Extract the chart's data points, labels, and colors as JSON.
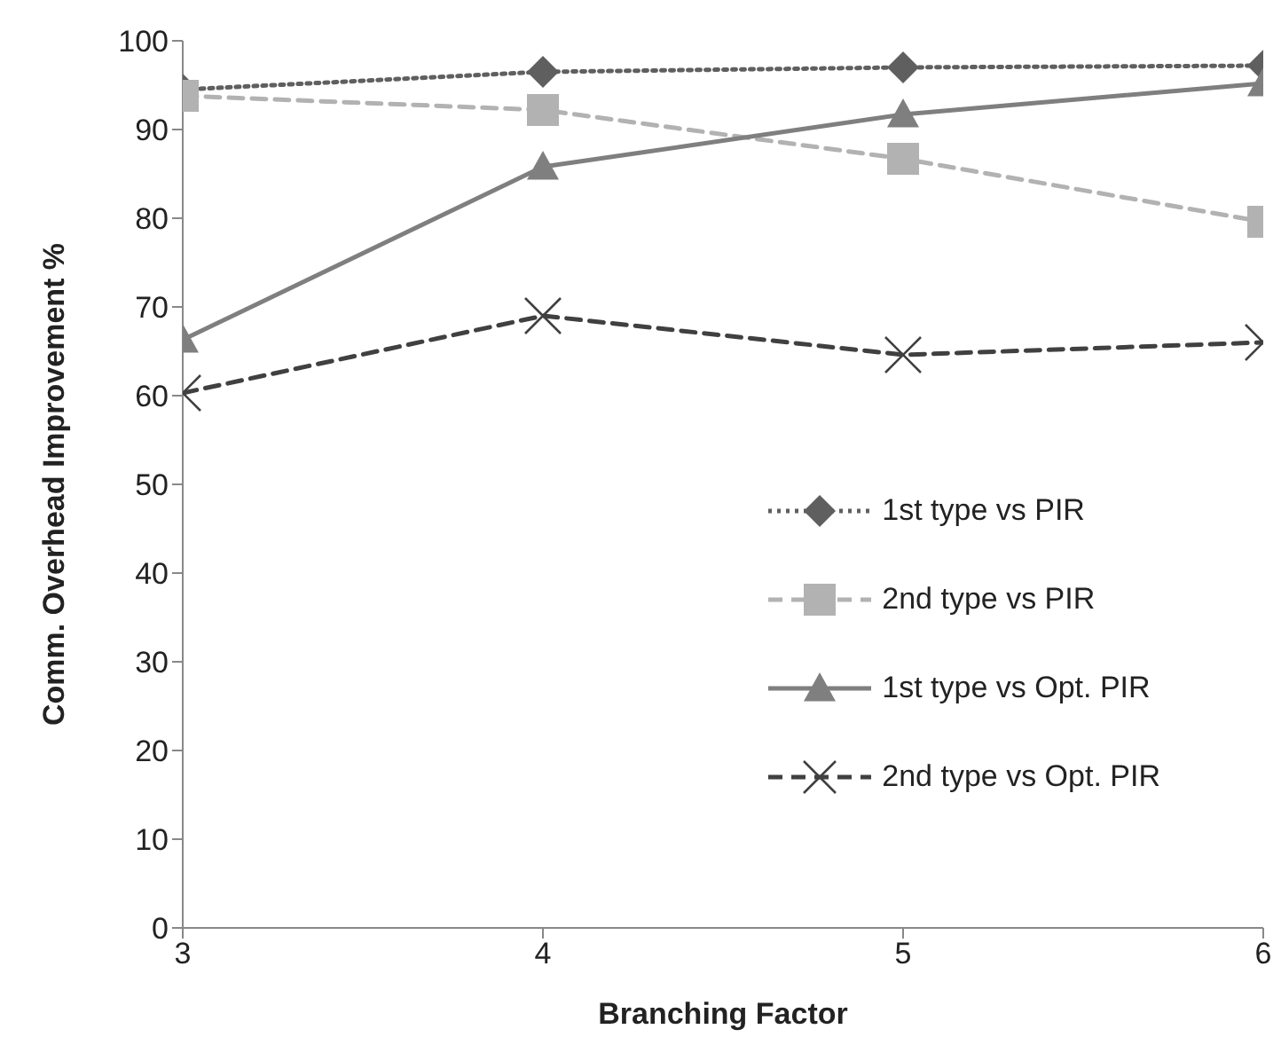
{
  "chart_data": {
    "type": "line",
    "xlabel": "Branching Factor",
    "ylabel": "Comm. Overhead Improvement %",
    "x": [
      3,
      4,
      5,
      6
    ],
    "xlim": [
      3,
      6
    ],
    "xticks": [
      3,
      4,
      5,
      6
    ],
    "ylim": [
      0,
      100
    ],
    "yticks": [
      0,
      10,
      20,
      30,
      40,
      50,
      60,
      70,
      80,
      90,
      100
    ],
    "grid": false,
    "legend": "right",
    "series": [
      {
        "name": "1st type vs PIR",
        "color": "#5f5f5f",
        "marker": "diamond",
        "line_style": "dotted",
        "values": [
          94.5,
          96.5,
          97,
          97.2
        ]
      },
      {
        "name": "2nd type vs PIR",
        "color": "#b2b2b2",
        "marker": "square",
        "line_style": "dashed",
        "values": [
          93.8,
          92.2,
          86.7,
          79.6
        ]
      },
      {
        "name": "1st type vs Opt. PIR",
        "color": "#7f7f7f",
        "marker": "triangle",
        "line_style": "solid",
        "values": [
          66.3,
          85.8,
          91.7,
          95.2
        ]
      },
      {
        "name": "2nd type vs Opt. PIR",
        "color": "#404040",
        "marker": "cross",
        "line_style": "dashed",
        "values": [
          60.3,
          69,
          64.6,
          66
        ]
      }
    ]
  }
}
